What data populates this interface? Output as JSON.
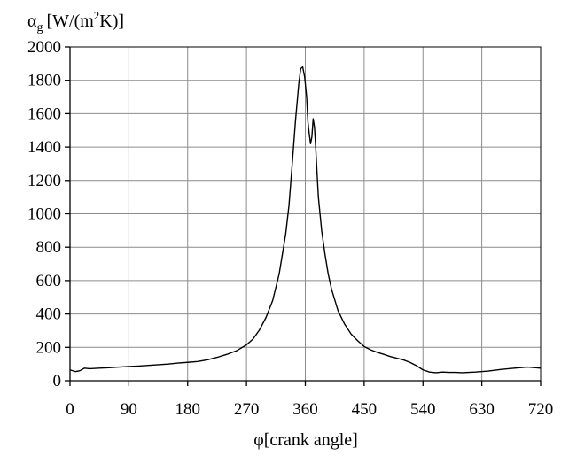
{
  "chart_data": {
    "type": "line",
    "title": "",
    "ylabel": {
      "symbol": "α",
      "subscript": "g",
      "unit_prefix": "[W/(m",
      "unit_sup": "2",
      "unit_suffix": "K)]"
    },
    "xlabel": "φ[crank angle]",
    "xlim": [
      0,
      720
    ],
    "ylim": [
      0,
      2000
    ],
    "x_ticks": [
      0,
      90,
      180,
      270,
      360,
      450,
      540,
      630,
      720
    ],
    "y_ticks": [
      0,
      200,
      400,
      600,
      800,
      1000,
      1200,
      1400,
      1600,
      1800,
      2000
    ],
    "grid": true,
    "legend": "none",
    "series": [
      {
        "x": [
          0,
          8,
          15,
          22,
          30,
          45,
          60,
          75,
          90,
          105,
          120,
          135,
          150,
          165,
          180,
          195,
          210,
          225,
          240,
          255,
          270,
          280,
          290,
          300,
          310,
          320,
          330,
          335,
          340,
          345,
          350,
          353,
          356,
          359,
          362,
          364,
          366,
          368,
          370,
          372,
          374,
          376,
          378,
          380,
          385,
          390,
          395,
          400,
          410,
          420,
          430,
          440,
          450,
          460,
          470,
          480,
          490,
          500,
          510,
          520,
          530,
          540,
          550,
          560,
          570,
          580,
          590,
          600,
          620,
          640,
          660,
          680,
          700,
          720
        ],
        "y": [
          65,
          55,
          60,
          75,
          72,
          75,
          78,
          82,
          85,
          88,
          92,
          96,
          100,
          106,
          110,
          115,
          125,
          140,
          158,
          180,
          215,
          250,
          305,
          380,
          480,
          640,
          880,
          1050,
          1300,
          1560,
          1780,
          1870,
          1880,
          1820,
          1700,
          1550,
          1480,
          1420,
          1460,
          1570,
          1520,
          1390,
          1240,
          1100,
          900,
          760,
          640,
          550,
          420,
          340,
          280,
          240,
          205,
          185,
          170,
          158,
          145,
          135,
          125,
          110,
          90,
          65,
          52,
          48,
          52,
          50,
          50,
          48,
          52,
          58,
          68,
          75,
          82,
          75
        ]
      }
    ]
  }
}
